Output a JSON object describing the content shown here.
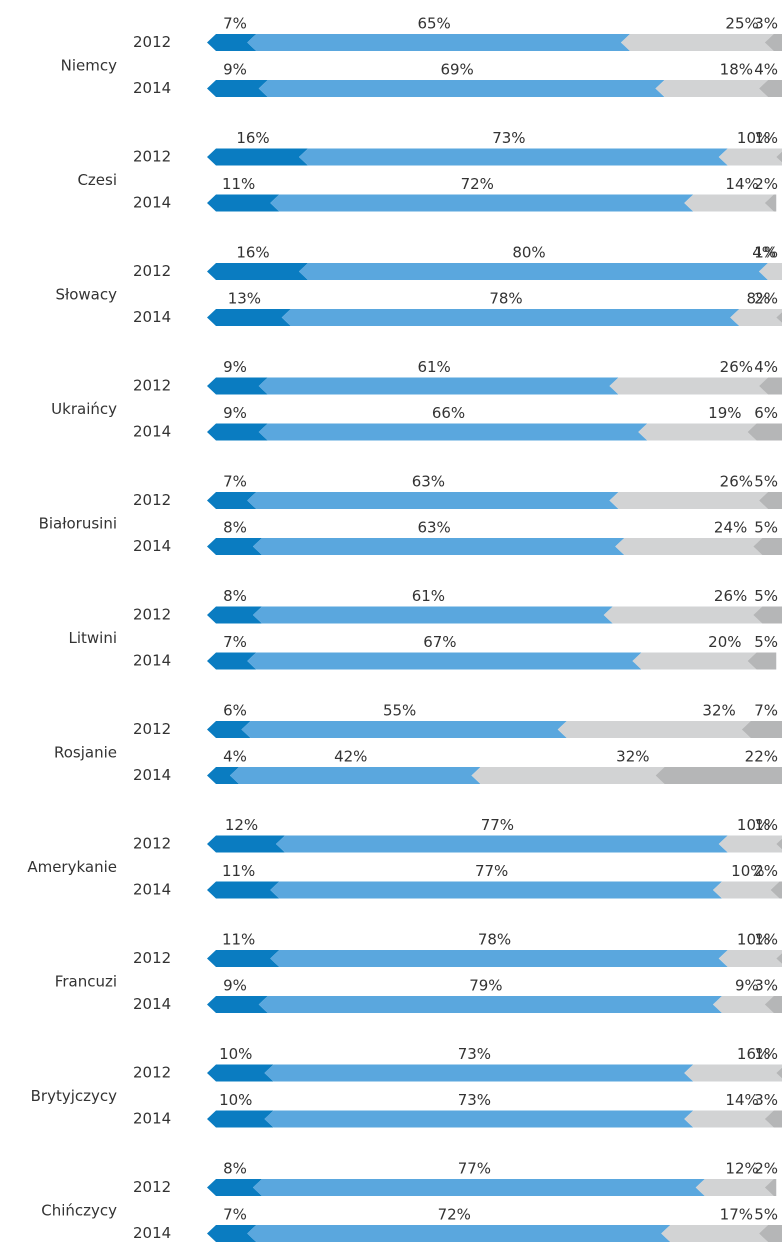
{
  "chart_data": {
    "type": "bar",
    "stacked": true,
    "colors": [
      "#0a7cc1",
      "#5aa7de",
      "#d2d3d4",
      "#b5b6b7"
    ],
    "xlim": [
      0,
      100
    ],
    "groups": [
      {
        "name": "Niemcy",
        "rows": [
          {
            "label": "2012",
            "values": [
              7,
              65,
              25,
              3
            ],
            "value_labels": [
              "7%",
              "65%",
              "25%",
              "3%"
            ]
          },
          {
            "label": "2014",
            "values": [
              9,
              69,
              18,
              4
            ],
            "value_labels": [
              "9%",
              "69%",
              "18%",
              "4%"
            ]
          }
        ]
      },
      {
        "name": "Czesi",
        "rows": [
          {
            "label": "2012",
            "values": [
              16,
              73,
              10,
              1
            ],
            "value_labels": [
              "16%",
              "73%",
              "10%",
              "1%"
            ]
          },
          {
            "label": "2014",
            "values": [
              11,
              72,
              14,
              2
            ],
            "value_labels": [
              "11%",
              "72%",
              "14%",
              "2%"
            ]
          }
        ]
      },
      {
        "name": "Słowacy",
        "rows": [
          {
            "label": "2012",
            "values": [
              16,
              80,
              4,
              1
            ],
            "value_labels": [
              "16%",
              "80%",
              "4%",
              "1%"
            ]
          },
          {
            "label": "2014",
            "values": [
              13,
              78,
              8,
              2
            ],
            "value_labels": [
              "13%",
              "78%",
              "8%",
              "2%"
            ]
          }
        ]
      },
      {
        "name": "Ukraińcy",
        "rows": [
          {
            "label": "2012",
            "values": [
              9,
              61,
              26,
              4
            ],
            "value_labels": [
              "9%",
              "61%",
              "26%",
              "4%"
            ]
          },
          {
            "label": "2014",
            "values": [
              9,
              66,
              19,
              6
            ],
            "value_labels": [
              "9%",
              "66%",
              "19%",
              "6%"
            ]
          }
        ]
      },
      {
        "name": "Białorusini",
        "rows": [
          {
            "label": "2012",
            "values": [
              7,
              63,
              26,
              5
            ],
            "value_labels": [
              "7%",
              "63%",
              "26%",
              "5%"
            ]
          },
          {
            "label": "2014",
            "values": [
              8,
              63,
              24,
              5
            ],
            "value_labels": [
              "8%",
              "63%",
              "24%",
              "5%"
            ]
          }
        ]
      },
      {
        "name": "Litwini",
        "rows": [
          {
            "label": "2012",
            "values": [
              8,
              61,
              26,
              5
            ],
            "value_labels": [
              "8%",
              "61%",
              "26%",
              "5%"
            ]
          },
          {
            "label": "2014",
            "values": [
              7,
              67,
              20,
              5
            ],
            "value_labels": [
              "7%",
              "67%",
              "20%",
              "5%"
            ]
          }
        ]
      },
      {
        "name": "Rosjanie",
        "rows": [
          {
            "label": "2012",
            "values": [
              6,
              55,
              32,
              7
            ],
            "value_labels": [
              "6%",
              "55%",
              "32%",
              "7%"
            ]
          },
          {
            "label": "2014",
            "values": [
              4,
              42,
              32,
              22
            ],
            "value_labels": [
              "4%",
              "42%",
              "32%",
              "22%"
            ]
          }
        ]
      },
      {
        "name": "Amerykanie",
        "rows": [
          {
            "label": "2012",
            "values": [
              12,
              77,
              10,
              1
            ],
            "value_labels": [
              "12%",
              "77%",
              "10%",
              "1%"
            ]
          },
          {
            "label": "2014",
            "values": [
              11,
              77,
              10,
              2
            ],
            "value_labels": [
              "11%",
              "77%",
              "10%",
              "2%"
            ]
          }
        ]
      },
      {
        "name": "Francuzi",
        "rows": [
          {
            "label": "2012",
            "values": [
              11,
              78,
              10,
              1
            ],
            "value_labels": [
              "11%",
              "78%",
              "10%",
              "1%"
            ]
          },
          {
            "label": "2014",
            "values": [
              9,
              79,
              9,
              3
            ],
            "value_labels": [
              "9%",
              "79%",
              "9%",
              "3%"
            ]
          }
        ]
      },
      {
        "name": "Brytyjczycy",
        "rows": [
          {
            "label": "2012",
            "values": [
              10,
              73,
              16,
              1
            ],
            "value_labels": [
              "10%",
              "73%",
              "16%",
              "1%"
            ]
          },
          {
            "label": "2014",
            "values": [
              10,
              73,
              14,
              3
            ],
            "value_labels": [
              "10%",
              "73%",
              "14%",
              "3%"
            ]
          }
        ]
      },
      {
        "name": "Chińczycy",
        "rows": [
          {
            "label": "2012",
            "values": [
              8,
              77,
              12,
              2
            ],
            "value_labels": [
              "8%",
              "77%",
              "12%",
              "2%"
            ]
          },
          {
            "label": "2014",
            "values": [
              7,
              72,
              17,
              5
            ],
            "value_labels": [
              "7%",
              "72%",
              "17%",
              "5%"
            ]
          }
        ]
      }
    ]
  }
}
